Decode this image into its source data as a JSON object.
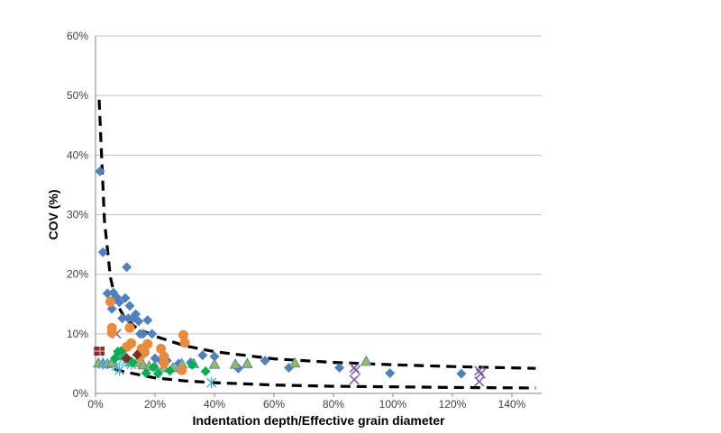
{
  "chart_data": {
    "type": "scatter",
    "xlabel": "Indentation depth/Effective grain diameter",
    "ylabel": "COV (%)",
    "xlim": [
      0,
      150
    ],
    "ylim": [
      0,
      60
    ],
    "x_ticks": [
      "0%",
      "20%",
      "40%",
      "60%",
      "80%",
      "100%",
      "120%",
      "140%"
    ],
    "y_ticks": [
      "0%",
      "10%",
      "20%",
      "30%",
      "40%",
      "50%",
      "60%"
    ],
    "grid": "horizontal",
    "legend": "none",
    "series": [
      {
        "marker": "diamond",
        "color": "#4f81bd",
        "points": [
          [
            1.5,
            37.3
          ],
          [
            2.5,
            23.7
          ],
          [
            4,
            16.8
          ],
          [
            5,
            15.5
          ],
          [
            5.5,
            14.2
          ],
          [
            6,
            16.9
          ],
          [
            7,
            16.2
          ],
          [
            8,
            15.3
          ],
          [
            9,
            12.6
          ],
          [
            10,
            16
          ],
          [
            10.5,
            21.2
          ],
          [
            11,
            12.6
          ],
          [
            11.5,
            14.7
          ],
          [
            12.5,
            12.6
          ],
          [
            13.5,
            13.3
          ],
          [
            14.5,
            12.1
          ],
          [
            15,
            10
          ],
          [
            16,
            10
          ],
          [
            17.5,
            12.3
          ],
          [
            19,
            10
          ],
          [
            20,
            5.9
          ],
          [
            22,
            5.5
          ],
          [
            24,
            5.5
          ],
          [
            28,
            5
          ],
          [
            32,
            5.2
          ],
          [
            36,
            6.4
          ],
          [
            40,
            6.2
          ],
          [
            48,
            4.2
          ],
          [
            57,
            5.5
          ],
          [
            65,
            4.3
          ],
          [
            82,
            4.3
          ],
          [
            99,
            3.4
          ],
          [
            123,
            3.3
          ]
        ]
      },
      {
        "marker": "square",
        "color": "#8b2c2c",
        "points": [
          [
            1,
            7.1
          ],
          [
            1.5,
            7.1
          ]
        ]
      },
      {
        "marker": "triangle",
        "color": "#9bbb59",
        "points": [
          [
            1,
            5.1
          ],
          [
            2.5,
            5.1
          ],
          [
            4,
            5
          ],
          [
            5.5,
            5.2
          ],
          [
            7,
            6.3
          ],
          [
            8.5,
            6.8
          ],
          [
            10,
            6.3
          ],
          [
            12,
            5.3
          ],
          [
            14,
            5.2
          ],
          [
            16,
            4.8
          ],
          [
            18,
            4.6
          ],
          [
            20,
            4.6
          ],
          [
            23,
            4.3
          ],
          [
            26,
            4.3
          ],
          [
            29,
            5
          ],
          [
            33,
            5
          ],
          [
            40,
            4.9
          ],
          [
            47,
            4.9
          ],
          [
            51,
            5
          ],
          [
            67,
            5.1
          ],
          [
            91,
            5.4
          ]
        ]
      },
      {
        "marker": "x",
        "color": "#7f5fa6",
        "points": [
          [
            7,
            10
          ],
          [
            87,
            4.3
          ],
          [
            87.5,
            3.9
          ],
          [
            87,
            2.3
          ],
          [
            129,
            3.8
          ],
          [
            129.5,
            3.3
          ],
          [
            129,
            2
          ]
        ]
      },
      {
        "marker": "star",
        "color": "#4bacc6",
        "points": [
          [
            2.5,
            4.9
          ],
          [
            7,
            4.6
          ],
          [
            8,
            3.9
          ],
          [
            10,
            5.4
          ],
          [
            12,
            4.9
          ],
          [
            39,
            1.8
          ]
        ]
      },
      {
        "marker": "circle",
        "color": "#e98b3f",
        "points": [
          [
            5,
            15.4
          ],
          [
            5.5,
            11
          ],
          [
            5.5,
            10.2
          ],
          [
            10.5,
            7.8
          ],
          [
            11.5,
            11
          ],
          [
            12,
            8.4
          ],
          [
            15,
            6.2
          ],
          [
            15.5,
            7.5
          ],
          [
            16.5,
            6.9
          ],
          [
            17.5,
            8.3
          ],
          [
            22,
            7.5
          ],
          [
            23,
            6.2
          ],
          [
            23,
            5.1
          ],
          [
            29.5,
            9.8
          ],
          [
            30,
            8.5
          ],
          [
            29,
            3.9
          ]
        ]
      },
      {
        "marker": "diamond",
        "color": "#00b050",
        "points": [
          [
            6.5,
            5.9
          ],
          [
            7.5,
            7
          ],
          [
            8.5,
            7.1
          ],
          [
            10,
            5.9
          ],
          [
            12.5,
            5.2
          ],
          [
            17,
            3.4
          ],
          [
            19.5,
            4.4
          ],
          [
            21,
            3.3
          ],
          [
            25,
            3.8
          ],
          [
            32.5,
            4.8
          ],
          [
            37,
            3.7
          ]
        ]
      },
      {
        "marker": "diamond",
        "color": "#7b2f1d",
        "points": [
          [
            10.5,
            5.9
          ],
          [
            14,
            6.5
          ]
        ]
      },
      {
        "type": "dashed-curve",
        "color": "#000000",
        "points": [
          [
            1.2,
            49.3
          ],
          [
            3,
            29
          ],
          [
            5,
            19.5
          ],
          [
            7,
            15.2
          ],
          [
            10,
            12.5
          ],
          [
            14,
            10.9
          ],
          [
            20,
            9.6
          ],
          [
            30,
            8
          ],
          [
            40,
            7
          ],
          [
            60,
            5.8
          ],
          [
            80,
            5.2
          ],
          [
            100,
            4.8
          ],
          [
            120,
            4.5
          ],
          [
            148,
            4.2
          ]
        ]
      },
      {
        "type": "dashed-curve",
        "color": "#000000",
        "points": [
          [
            1.2,
            4.9
          ],
          [
            5,
            4.2
          ],
          [
            10,
            3.6
          ],
          [
            20,
            2.6
          ],
          [
            30,
            2.1
          ],
          [
            40,
            1.8
          ],
          [
            60,
            1.4
          ],
          [
            80,
            1.2
          ],
          [
            100,
            1.1
          ],
          [
            120,
            1
          ],
          [
            148,
            0.9
          ]
        ]
      }
    ]
  }
}
